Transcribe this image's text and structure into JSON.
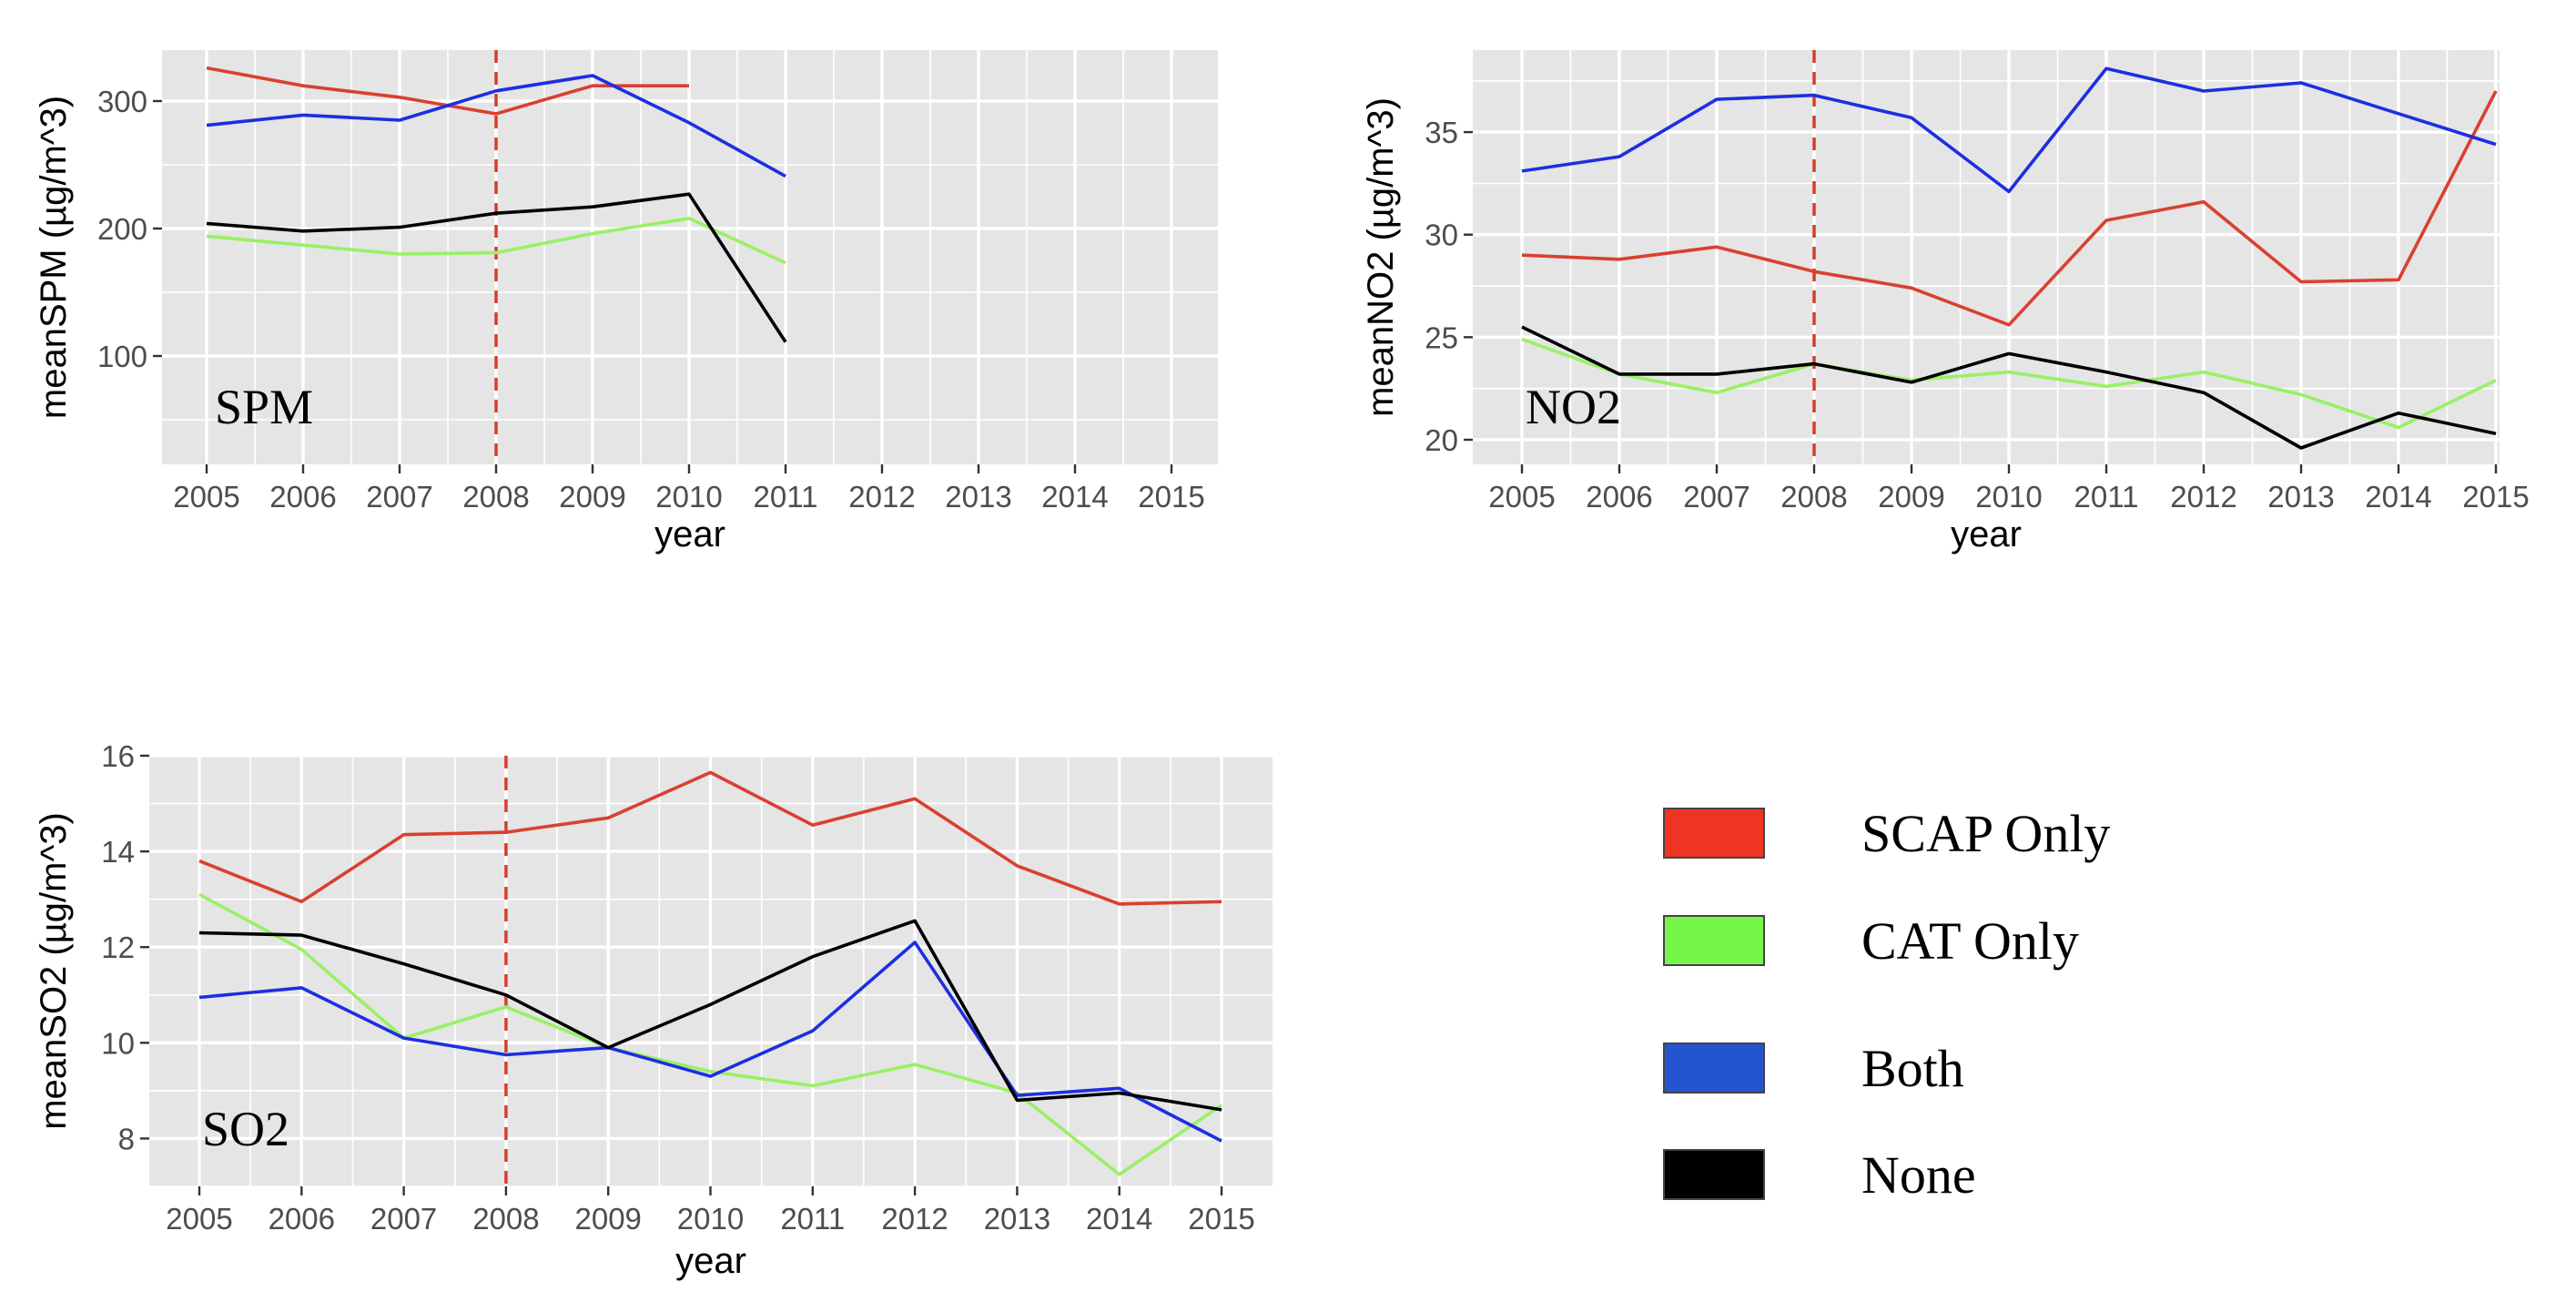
{
  "chart_data": [
    {
      "type": "line",
      "panel_label": "SPM",
      "xlabel": "year",
      "ylabel": "meanSPM (µg/m^3)",
      "x": [
        2005,
        2006,
        2007,
        2008,
        2009,
        2010,
        2011,
        2012,
        2013,
        2014,
        2015
      ],
      "xlim": [
        2005,
        2015
      ],
      "ylim": [
        15,
        340
      ],
      "yticks": [
        100,
        200,
        300
      ],
      "grid": true,
      "reference_line_x": 2008,
      "series": [
        {
          "key": "scap",
          "values": [
            326,
            312,
            303,
            290,
            312,
            312,
            null,
            null,
            null,
            null,
            null
          ]
        },
        {
          "key": "cat",
          "values": [
            194,
            187,
            180,
            181,
            196,
            208,
            173,
            null,
            null,
            null,
            null
          ]
        },
        {
          "key": "both",
          "values": [
            281,
            289,
            285,
            308,
            320,
            283,
            241,
            null,
            null,
            null,
            null
          ]
        },
        {
          "key": "none",
          "values": [
            204,
            198,
            201,
            212,
            217,
            227,
            111,
            null,
            null,
            null,
            null
          ]
        }
      ]
    },
    {
      "type": "line",
      "panel_label": "NO2",
      "xlabel": "year",
      "ylabel": "meanNO2 (µg/m^3)",
      "x": [
        2005,
        2006,
        2007,
        2008,
        2009,
        2010,
        2011,
        2012,
        2013,
        2014,
        2015
      ],
      "xlim": [
        2005,
        2015
      ],
      "ylim": [
        18.8,
        39.0
      ],
      "yticks": [
        20,
        25,
        30,
        35
      ],
      "grid": true,
      "reference_line_x": 2008,
      "series": [
        {
          "key": "scap",
          "values": [
            29.0,
            28.8,
            29.4,
            28.2,
            27.4,
            25.6,
            30.7,
            31.6,
            27.7,
            27.8,
            37.0
          ]
        },
        {
          "key": "cat",
          "values": [
            24.9,
            23.2,
            22.3,
            23.7,
            22.9,
            23.3,
            22.6,
            23.3,
            22.2,
            20.6,
            22.9
          ]
        },
        {
          "key": "both",
          "values": [
            33.1,
            33.8,
            36.6,
            36.8,
            35.7,
            32.1,
            38.1,
            37.0,
            37.4,
            35.9,
            34.4
          ]
        },
        {
          "key": "none",
          "values": [
            25.5,
            23.2,
            23.2,
            23.7,
            22.8,
            24.2,
            23.3,
            22.3,
            19.6,
            21.3,
            20.3
          ]
        }
      ]
    },
    {
      "type": "line",
      "panel_label": "SO2",
      "xlabel": "year",
      "ylabel": "meanSO2 (µg/m^3)",
      "x": [
        2005,
        2006,
        2007,
        2008,
        2009,
        2010,
        2011,
        2012,
        2013,
        2014,
        2015
      ],
      "xlim": [
        2005,
        2015
      ],
      "ylim": [
        7.0,
        16.0
      ],
      "yticks": [
        8,
        10,
        12,
        14,
        16
      ],
      "grid": true,
      "reference_line_x": 2008,
      "series": [
        {
          "key": "scap",
          "values": [
            13.8,
            12.95,
            14.35,
            14.4,
            14.7,
            15.65,
            14.55,
            15.1,
            13.7,
            12.9,
            12.95
          ]
        },
        {
          "key": "cat",
          "values": [
            13.1,
            11.95,
            10.1,
            10.75,
            9.9,
            9.4,
            9.1,
            9.55,
            8.95,
            7.25,
            8.7
          ]
        },
        {
          "key": "both",
          "values": [
            10.95,
            11.15,
            10.1,
            9.75,
            9.9,
            9.3,
            10.25,
            12.1,
            8.9,
            9.05,
            7.95
          ]
        },
        {
          "key": "none",
          "values": [
            12.3,
            12.25,
            11.65,
            11.0,
            9.9,
            10.8,
            11.8,
            12.55,
            8.8,
            8.95,
            8.6
          ]
        }
      ]
    }
  ],
  "legend": {
    "placement": "bottom-right",
    "items": [
      {
        "key": "scap",
        "label": "SCAP Only",
        "color": "#ee3524"
      },
      {
        "key": "cat",
        "label": "CAT Only",
        "color": "#77f64a"
      },
      {
        "key": "both",
        "label": "Both",
        "color": "#2455cf"
      },
      {
        "key": "none",
        "label": "None",
        "color": "#000000"
      }
    ]
  },
  "colors": {
    "panel_background": "#e5e5e5",
    "grid": "#ffffff",
    "reference_line": "#d43f2a",
    "scap_line": "#d94030",
    "cat_line": "#9af066",
    "both_line": "#1d2fe0",
    "none_line": "#000000"
  }
}
